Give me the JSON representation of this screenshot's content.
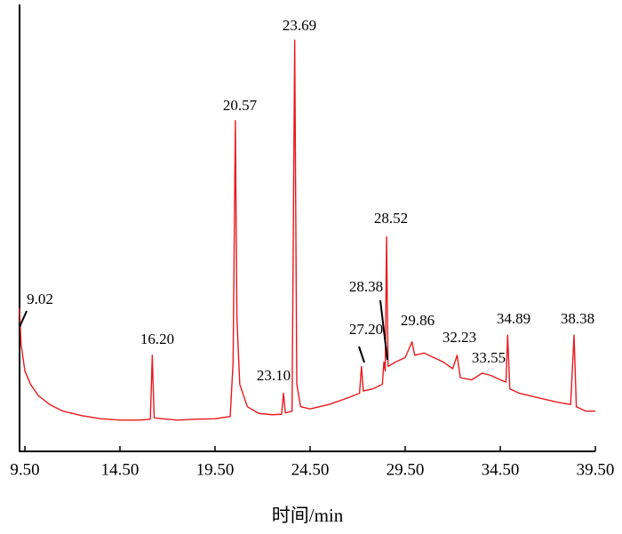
{
  "chart_data": {
    "type": "line",
    "x_label": "时间/min",
    "color": "#e8191e",
    "xlim": [
      9.22,
      39.5
    ],
    "ylim": [
      0,
      100
    ],
    "xticks": [
      {
        "value": 9.5,
        "label": "9.50"
      },
      {
        "value": 14.5,
        "label": "14.50"
      },
      {
        "value": 19.5,
        "label": "19.50"
      },
      {
        "value": 24.5,
        "label": "24.50"
      },
      {
        "value": 29.5,
        "label": "29.50"
      },
      {
        "value": 34.5,
        "label": "34.50"
      },
      {
        "value": 39.5,
        "label": "39.50"
      }
    ],
    "x": [
      9.22,
      9.3,
      9.5,
      9.8,
      10.2,
      10.8,
      11.5,
      12.5,
      13.5,
      14.5,
      15.5,
      16.1,
      16.2,
      16.3,
      16.5,
      17.5,
      18.5,
      19.5,
      20.3,
      20.45,
      20.57,
      20.65,
      20.8,
      21.2,
      21.8,
      22.5,
      23.0,
      23.1,
      23.2,
      23.55,
      23.69,
      23.8,
      24.0,
      24.5,
      25.5,
      26.5,
      27.1,
      27.2,
      27.3,
      27.8,
      28.3,
      28.38,
      28.45,
      28.52,
      28.6,
      29.0,
      29.5,
      29.86,
      30.0,
      30.5,
      31.0,
      31.5,
      32.0,
      32.23,
      32.4,
      33.0,
      33.55,
      34.0,
      34.5,
      34.8,
      34.89,
      35.0,
      35.5,
      36.5,
      37.5,
      38.2,
      38.38,
      38.5,
      39.0,
      39.5
    ],
    "values": [
      32,
      24,
      18,
      15,
      12.5,
      10.5,
      9,
      8,
      7.3,
      7,
      7,
      7.2,
      21.5,
      7.5,
      7.4,
      7,
      7.2,
      7.3,
      7.8,
      20,
      74,
      30,
      15,
      10,
      8.5,
      8.2,
      8.3,
      13,
      8.6,
      9,
      92,
      15,
      10,
      9.5,
      10.5,
      12,
      13,
      19,
      13.5,
      14,
      15,
      20,
      18,
      48,
      19,
      20,
      21,
      24.5,
      21.5,
      22,
      21,
      20,
      18.5,
      21.5,
      16.5,
      16,
      17.5,
      17,
      16,
      15.5,
      26,
      14,
      13,
      12,
      11,
      10.5,
      26,
      10,
      9,
      9
    ],
    "peak_labels": [
      "9.02",
      "16.20",
      "20.57",
      "23.10",
      "23.69",
      "27.20",
      "28.38",
      "28.52",
      "29.86",
      "32.23",
      "33.55",
      "34.89",
      "38.38"
    ]
  }
}
